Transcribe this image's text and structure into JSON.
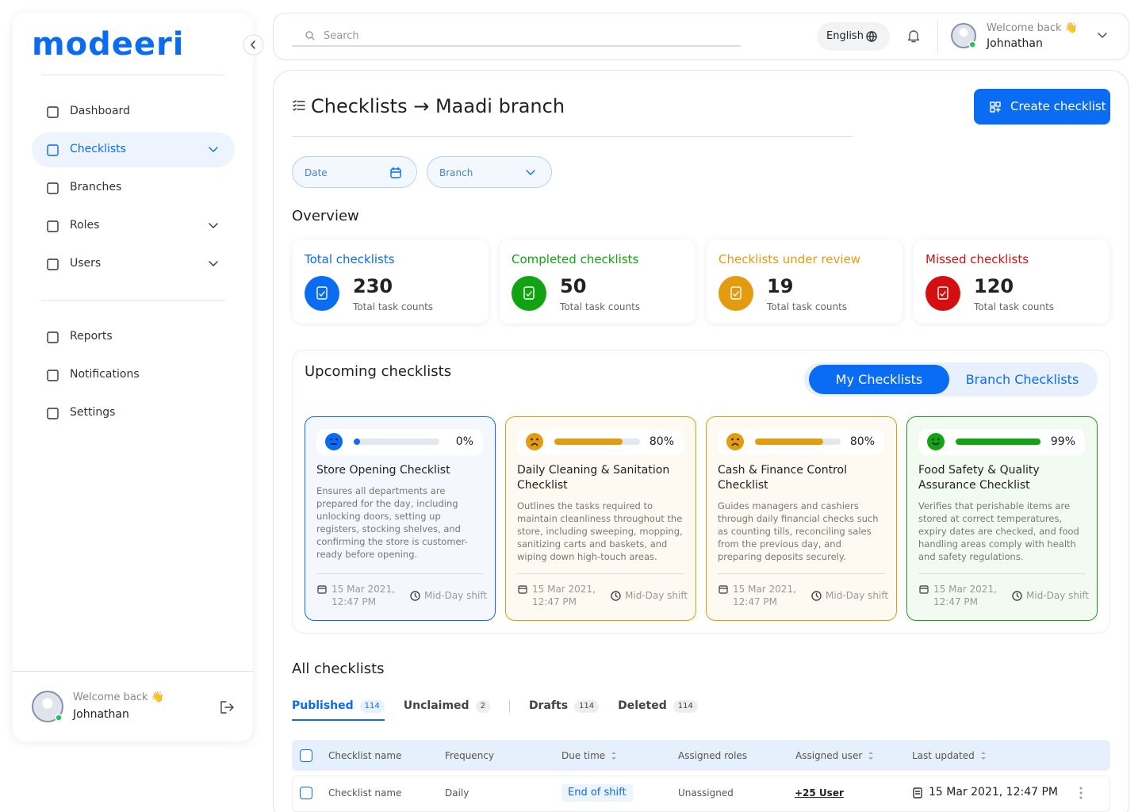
{
  "sidebar": {
    "logo": "modeeri",
    "nav": [
      {
        "label": "Dashboard"
      },
      {
        "label": "Checklists",
        "active": true,
        "expandable": true
      },
      {
        "label": "Branches"
      },
      {
        "label": "Roles",
        "expandable": true
      },
      {
        "label": "Users",
        "expandable": true
      }
    ],
    "nav2": [
      {
        "label": "Reports"
      },
      {
        "label": "Notifications"
      },
      {
        "label": "Settings"
      }
    ],
    "user": {
      "greeting": "Welcome back 👋",
      "name": "Johnathan"
    }
  },
  "topbar": {
    "search_placeholder": "Search",
    "language": "English",
    "user": {
      "greeting": "Welcome back 👋",
      "name": "Johnathan"
    }
  },
  "header": {
    "title": "Checklists → Maadi branch",
    "create_button": "Create checklist"
  },
  "filters": [
    "Date",
    "Branch"
  ],
  "overview": {
    "title": "Overview",
    "cards": [
      {
        "title": "Total checklists",
        "count": 230,
        "caption": "Total task counts",
        "color": "#0a6cf2"
      },
      {
        "title": "Completed checklists",
        "count": 50,
        "caption": "Total task counts",
        "color": "#12a312"
      },
      {
        "title": "Checklists under review",
        "count": 19,
        "caption": "Total task counts",
        "color": "#e49b0f"
      },
      {
        "title": "Missed checklists",
        "count": 120,
        "caption": "Total task counts",
        "color": "#d40f0f"
      }
    ]
  },
  "upcoming": {
    "title": "Upcoming checklists",
    "tabs": [
      "My Checklists",
      "Branch Checklists"
    ],
    "cards": [
      {
        "progress": 0,
        "progress_label": "0%",
        "title": "Store Opening Checklist",
        "description": "Ensures all departments are prepared for the day, including unlocking doors, setting up registers, stocking shelves, and confirming the store is customer-ready before opening.",
        "date": "15 Mar 2021, 12:47 PM",
        "shift": "Mid-Day shift",
        "color": "#0a6cf2",
        "background": "#f4f8fe"
      },
      {
        "progress": 80,
        "progress_label": "80%",
        "title": "Daily Cleaning & Sanitation Checklist",
        "description": "Outlines the tasks required to maintain cleanliness throughout the store, including sweeping, mopping, sanitizing carts and baskets, and wiping down high-touch areas.",
        "date": "15 Mar 2021, 12:47 PM",
        "shift": "Mid-Day shift",
        "color": "#e49b0f",
        "background": "#fffaf1"
      },
      {
        "progress": 80,
        "progress_label": "80%",
        "title": "Cash & Finance Control Checklist",
        "description": "Guides managers and cashiers through daily financial checks such as counting tills, reconciling sales from the previous day, and preparing deposits securely.",
        "date": "15 Mar 2021, 12:47 PM",
        "shift": "Mid-Day shift",
        "color": "#e49b0f",
        "background": "#fffaf1"
      },
      {
        "progress": 99,
        "progress_label": "99%",
        "title": "Food Safety & Quality Assurance Checklist",
        "description": "Verifies that perishable items are stored at correct temperatures, expiry dates are checked, and food handling areas comply with health and safety regulations.",
        "date": "15 Mar 2021, 12:47 PM",
        "shift": "Mid-Day shift",
        "color": "#16a312",
        "background": "#f2fbf2"
      }
    ]
  },
  "all": {
    "title": "All checklists",
    "tabs": [
      {
        "label": "Published",
        "count": 114,
        "active": true
      },
      {
        "label": "Unclaimed",
        "count": 2
      },
      {
        "label": "Drafts",
        "count": 114
      },
      {
        "label": "Deleted",
        "count": 114
      }
    ],
    "table": {
      "columns": [
        {
          "label": "Checklist name"
        },
        {
          "label": "Frequency"
        },
        {
          "label": "Due time",
          "sortable": true
        },
        {
          "label": "Assigned roles"
        },
        {
          "label": "Assigned user",
          "sortable": true
        },
        {
          "label": "Last updated",
          "sortable": true
        }
      ],
      "rows": [
        {
          "name": "Checklist name",
          "frequency": "Daily",
          "due": "End of shift",
          "roles": "Unassigned",
          "user": "+25 User",
          "updated": "15 Mar 2021, 12:47 PM"
        }
      ]
    }
  }
}
